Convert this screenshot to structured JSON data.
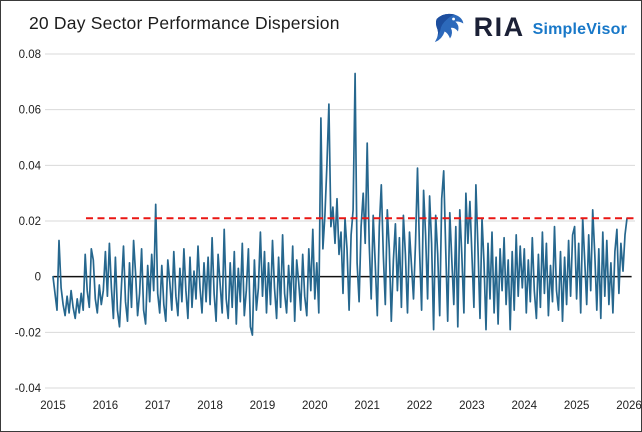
{
  "header": {
    "title": "20 Day Sector Performance Dispersion",
    "brand": {
      "name": "RIA",
      "product": "SimpleVisor"
    }
  },
  "colors": {
    "line": "#26678e",
    "reference_red": "#ea1613",
    "zero_line": "#111111",
    "grid": "#d9d9d9",
    "axis_text": "#222222",
    "title_text": "#1c1c1c",
    "brand_navy": "#1b2036",
    "brand_blue": "#1878c8",
    "eagle_blue": "#2c69bb",
    "eagle_dark": "#1d4e9e"
  },
  "chart_data": {
    "type": "line",
    "title": "20 Day Sector Performance Dispersion",
    "xlabel": "",
    "ylabel": "",
    "grid": "horizontal",
    "legend": "none",
    "xlim": [
      2015,
      2026
    ],
    "ylim": [
      -0.04,
      0.08
    ],
    "x_ticks": [
      2015,
      2016,
      2017,
      2018,
      2019,
      2020,
      2021,
      2022,
      2023,
      2024,
      2025,
      2026
    ],
    "x_tick_labels": [
      "2015",
      "2016",
      "2017",
      "2018",
      "2019",
      "2020",
      "2021",
      "2022",
      "2023",
      "2024",
      "2025",
      "2026"
    ],
    "y_ticks": [
      0.08,
      0.06,
      0.04,
      0.02,
      0,
      -0.02,
      -0.04
    ],
    "y_tick_labels": [
      "0.08",
      "0.06",
      "0.04",
      "0.02",
      "0",
      "-0.02",
      "-0.04"
    ],
    "reference_lines": [
      {
        "name": "dispersion-threshold",
        "value": 0.021,
        "style": "dashed",
        "color": "#ea1613",
        "x_start": 2015.63,
        "x_end": 2026.1,
        "width": 2
      },
      {
        "name": "zero-line",
        "value": 0,
        "style": "solid",
        "color": "#111111",
        "x_start": 2015.0,
        "x_end": 2026.05,
        "width": 1.5
      }
    ],
    "series": [
      {
        "name": "20 Day Sector Performance Dispersion",
        "color": "#26678e",
        "start_year": 2015,
        "points_per_year": 26,
        "values": [
          0.0,
          -0.006,
          -0.012,
          0.013,
          -0.004,
          -0.01,
          -0.014,
          -0.007,
          -0.013,
          -0.005,
          -0.011,
          -0.015,
          -0.008,
          -0.013,
          -0.006,
          -0.012,
          0.008,
          -0.005,
          -0.011,
          0.01,
          0.006,
          -0.008,
          -0.013,
          -0.003,
          -0.01,
          -0.005,
          0.009,
          -0.007,
          0.012,
          -0.004,
          -0.015,
          0.007,
          -0.012,
          -0.018,
          -0.003,
          0.011,
          -0.009,
          -0.016,
          0.005,
          -0.011,
          0.013,
          0.001,
          -0.014,
          -0.006,
          0.01,
          -0.012,
          -0.017,
          0.004,
          -0.009,
          0.008,
          -0.005,
          0.026,
          -0.006,
          -0.013,
          0.004,
          -0.01,
          -0.016,
          0.006,
          -0.002,
          -0.012,
          0.009,
          -0.007,
          -0.014,
          0.003,
          -0.009,
          0.01,
          -0.005,
          -0.015,
          0.007,
          -0.011,
          0.002,
          -0.008,
          0.011,
          -0.004,
          -0.013,
          0.005,
          -0.009,
          0.007,
          -0.01,
          0.014,
          -0.006,
          -0.016,
          0.008,
          -0.003,
          -0.013,
          0.017,
          -0.008,
          -0.015,
          0.005,
          -0.011,
          0.009,
          -0.017,
          0.003,
          -0.009,
          0.012,
          -0.014,
          -0.005,
          0.01,
          -0.018,
          -0.021,
          0.006,
          -0.012,
          -0.004,
          0.016,
          -0.007,
          0.009,
          -0.013,
          0.005,
          -0.01,
          0.013,
          -0.004,
          -0.015,
          0.007,
          -0.011,
          0.015,
          -0.006,
          -0.013,
          0.004,
          -0.009,
          0.011,
          -0.016,
          0.006,
          -0.002,
          -0.012,
          0.008,
          -0.007,
          -0.014,
          0.01,
          -0.005,
          0.017,
          -0.008,
          0.005,
          -0.013,
          0.057,
          0.01,
          0.022,
          0.04,
          0.062,
          0.018,
          0.025,
          0.012,
          0.028,
          0.008,
          0.016,
          -0.006,
          0.021,
          0.01,
          -0.012,
          0.015,
          0.024,
          0.073,
          0.005,
          -0.009,
          0.018,
          0.03,
          0.012,
          0.048,
          0.012,
          -0.008,
          0.022,
          0.005,
          -0.014,
          0.018,
          0.033,
          0.008,
          -0.01,
          0.024,
          0.01,
          -0.016,
          0.006,
          0.019,
          -0.005,
          0.014,
          -0.011,
          0.022,
          0.008,
          -0.013,
          0.016,
          0.004,
          -0.008,
          0.012,
          0.039,
          0.01,
          -0.012,
          0.031,
          0.015,
          -0.008,
          0.029,
          0.012,
          -0.019,
          0.022,
          0.008,
          -0.014,
          0.028,
          0.038,
          0.01,
          -0.016,
          0.023,
          0.006,
          -0.01,
          0.018,
          -0.018,
          0.024,
          0.008,
          -0.013,
          0.03,
          0.012,
          0.027,
          0.008,
          -0.011,
          0.033,
          0.01,
          -0.015,
          0.021,
          0.005,
          -0.019,
          0.012,
          -0.008,
          0.016,
          -0.013,
          0.007,
          -0.017,
          0.01,
          -0.005,
          0.014,
          -0.01,
          0.006,
          -0.019,
          0.009,
          -0.012,
          0.015,
          -0.007,
          0.011,
          -0.004,
          0.01,
          -0.013,
          0.006,
          -0.009,
          0.014,
          -0.005,
          -0.015,
          0.008,
          -0.011,
          0.016,
          -0.006,
          0.012,
          -0.014,
          0.004,
          -0.009,
          0.018,
          -0.005,
          -0.012,
          0.009,
          -0.016,
          0.007,
          -0.01,
          0.013,
          -0.007,
          0.015,
          0.018,
          -0.008,
          0.012,
          -0.013,
          0.021,
          0.006,
          -0.01,
          0.015,
          -0.005,
          0.024,
          0.008,
          -0.012,
          0.01,
          -0.015,
          0.016,
          -0.007,
          0.013,
          -0.01,
          0.005,
          -0.013,
          0.009,
          0.017,
          -0.006,
          0.012,
          0.002,
          0.015,
          0.021
        ]
      }
    ]
  }
}
